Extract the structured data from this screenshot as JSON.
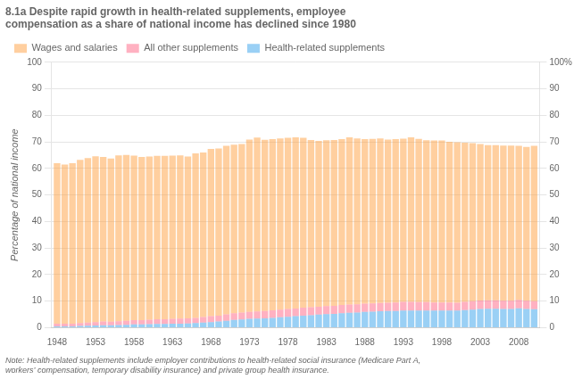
{
  "chart_data": {
    "type": "bar",
    "stacked": true,
    "title": "8.1a Despite rapid growth in health-related supplements, employee\ncompensation as a share of national income has declined since 1980",
    "ylabel": "Percentage of national income",
    "note": "Note: Health-related supplements include employer contributions to health-related social insurance (Medicare Part A,\nworkers’ compensation, temporary disability insurance) and private group health insurance.",
    "x": [
      1948,
      1949,
      1950,
      1951,
      1952,
      1953,
      1954,
      1955,
      1956,
      1957,
      1958,
      1959,
      1960,
      1961,
      1962,
      1963,
      1964,
      1965,
      1966,
      1967,
      1968,
      1969,
      1970,
      1971,
      1972,
      1973,
      1974,
      1975,
      1976,
      1977,
      1978,
      1979,
      1980,
      1981,
      1982,
      1983,
      1984,
      1985,
      1986,
      1987,
      1988,
      1989,
      1990,
      1991,
      1992,
      1993,
      1994,
      1995,
      1996,
      1997,
      1998,
      1999,
      2000,
      2001,
      2002,
      2003,
      2004,
      2005,
      2006,
      2007,
      2008,
      2009,
      2010
    ],
    "xlim": [
      1947.3,
      2010.7
    ],
    "xticks": [
      1948,
      1953,
      1958,
      1963,
      1968,
      1973,
      1978,
      1983,
      1988,
      1993,
      1998,
      2003,
      2008
    ],
    "ylim": [
      0,
      100
    ],
    "yticks": [
      0,
      10,
      20,
      30,
      40,
      50,
      60,
      70,
      80,
      90,
      100
    ],
    "y2lim": [
      0,
      100
    ],
    "y2ticks": [
      0,
      10,
      20,
      30,
      40,
      50,
      60,
      70,
      80,
      90,
      {
        "value": 100,
        "label": "100%"
      }
    ],
    "grid": true,
    "legend": "upper left",
    "series": [
      {
        "name": "Health-related supplements",
        "values": [
          0.5,
          0.5,
          0.5,
          0.6,
          0.7,
          0.8,
          0.9,
          0.9,
          1.0,
          1.1,
          1.2,
          1.2,
          1.3,
          1.4,
          1.4,
          1.5,
          1.5,
          1.6,
          1.7,
          1.9,
          2.1,
          2.3,
          2.6,
          2.9,
          3.1,
          3.3,
          3.4,
          3.5,
          3.7,
          3.9,
          4.1,
          4.3,
          4.5,
          4.7,
          4.9,
          5.1,
          5.2,
          5.4,
          5.6,
          5.7,
          5.9,
          6.0,
          6.2,
          6.3,
          6.3,
          6.4,
          6.4,
          6.4,
          6.4,
          6.4,
          6.4,
          6.4,
          6.4,
          6.6,
          6.8,
          7.0,
          7.1,
          7.1,
          7.0,
          7.0,
          7.3,
          7.0,
          6.9
        ]
      },
      {
        "name": "All other supplements",
        "values": [
          1.0,
          1.0,
          1.0,
          1.1,
          1.2,
          1.3,
          1.4,
          1.3,
          1.4,
          1.5,
          1.6,
          1.6,
          1.7,
          1.8,
          1.8,
          1.8,
          1.9,
          1.9,
          2.0,
          2.1,
          2.2,
          2.2,
          2.4,
          2.5,
          2.6,
          2.6,
          2.7,
          2.8,
          2.8,
          2.9,
          2.9,
          2.9,
          3.0,
          3.0,
          3.0,
          3.0,
          3.0,
          3.1,
          3.1,
          3.1,
          3.1,
          3.1,
          3.1,
          3.1,
          3.2,
          3.3,
          3.3,
          3.2,
          3.2,
          3.1,
          3.1,
          3.1,
          3.0,
          3.1,
          3.2,
          3.2,
          3.2,
          3.2,
          3.1,
          3.1,
          3.2,
          3.1,
          3.1
        ]
      },
      {
        "name": "Wages and salaries",
        "values": [
          60.5,
          60.0,
          60.5,
          61.5,
          62.0,
          62.5,
          62.0,
          61.5,
          62.5,
          62.5,
          62.0,
          61.5,
          61.5,
          61.5,
          61.5,
          61.5,
          61.5,
          61.0,
          62.0,
          62.0,
          63.0,
          63.0,
          63.5,
          63.5,
          63.5,
          65.0,
          65.5,
          64.5,
          64.5,
          64.5,
          64.5,
          64.5,
          64.0,
          63.0,
          62.5,
          62.5,
          62.5,
          62.5,
          63.0,
          62.5,
          62.0,
          62.0,
          62.0,
          61.5,
          61.5,
          61.5,
          62.0,
          61.5,
          61.0,
          61.0,
          61.0,
          60.5,
          60.5,
          60.0,
          59.5,
          59.0,
          58.5,
          58.5,
          58.5,
          58.5,
          58.0,
          58.0,
          58.5
        ]
      }
    ]
  }
}
